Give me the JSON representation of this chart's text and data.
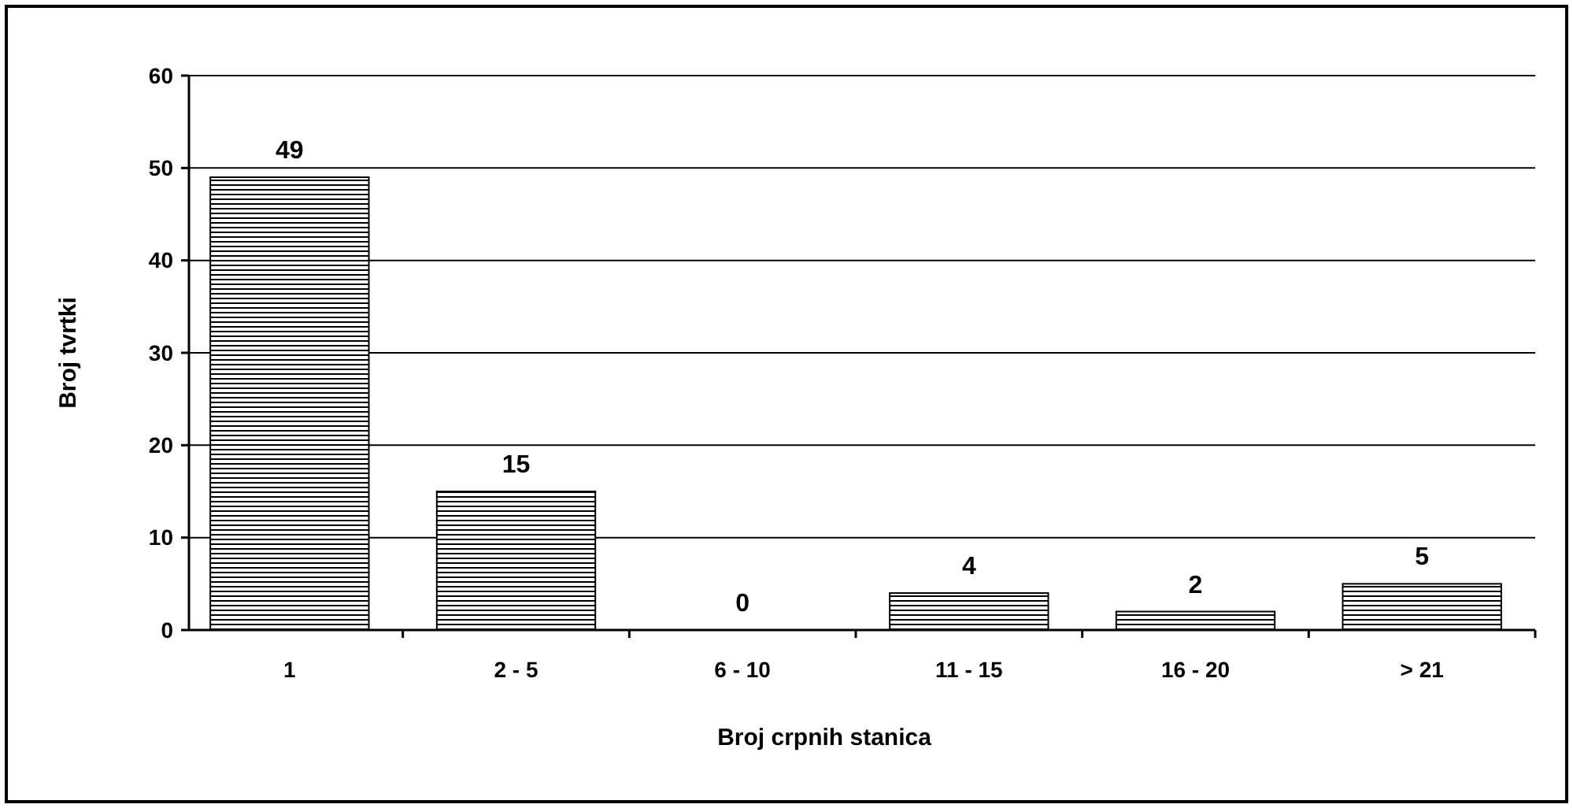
{
  "chart_data": {
    "type": "bar",
    "xlabel": "Broj crpnih stanica",
    "ylabel": "Broj tvrtki",
    "categories": [
      "1",
      "2 - 5",
      "6 - 10",
      "11 - 15",
      "16 - 20",
      "> 21"
    ],
    "values": [
      49,
      15,
      0,
      4,
      2,
      5
    ],
    "color": "#000000",
    "ylim": [
      0,
      60
    ],
    "yticks": [
      0,
      10,
      20,
      30,
      40,
      50,
      60
    ],
    "grid": "y",
    "data_labels": true
  }
}
